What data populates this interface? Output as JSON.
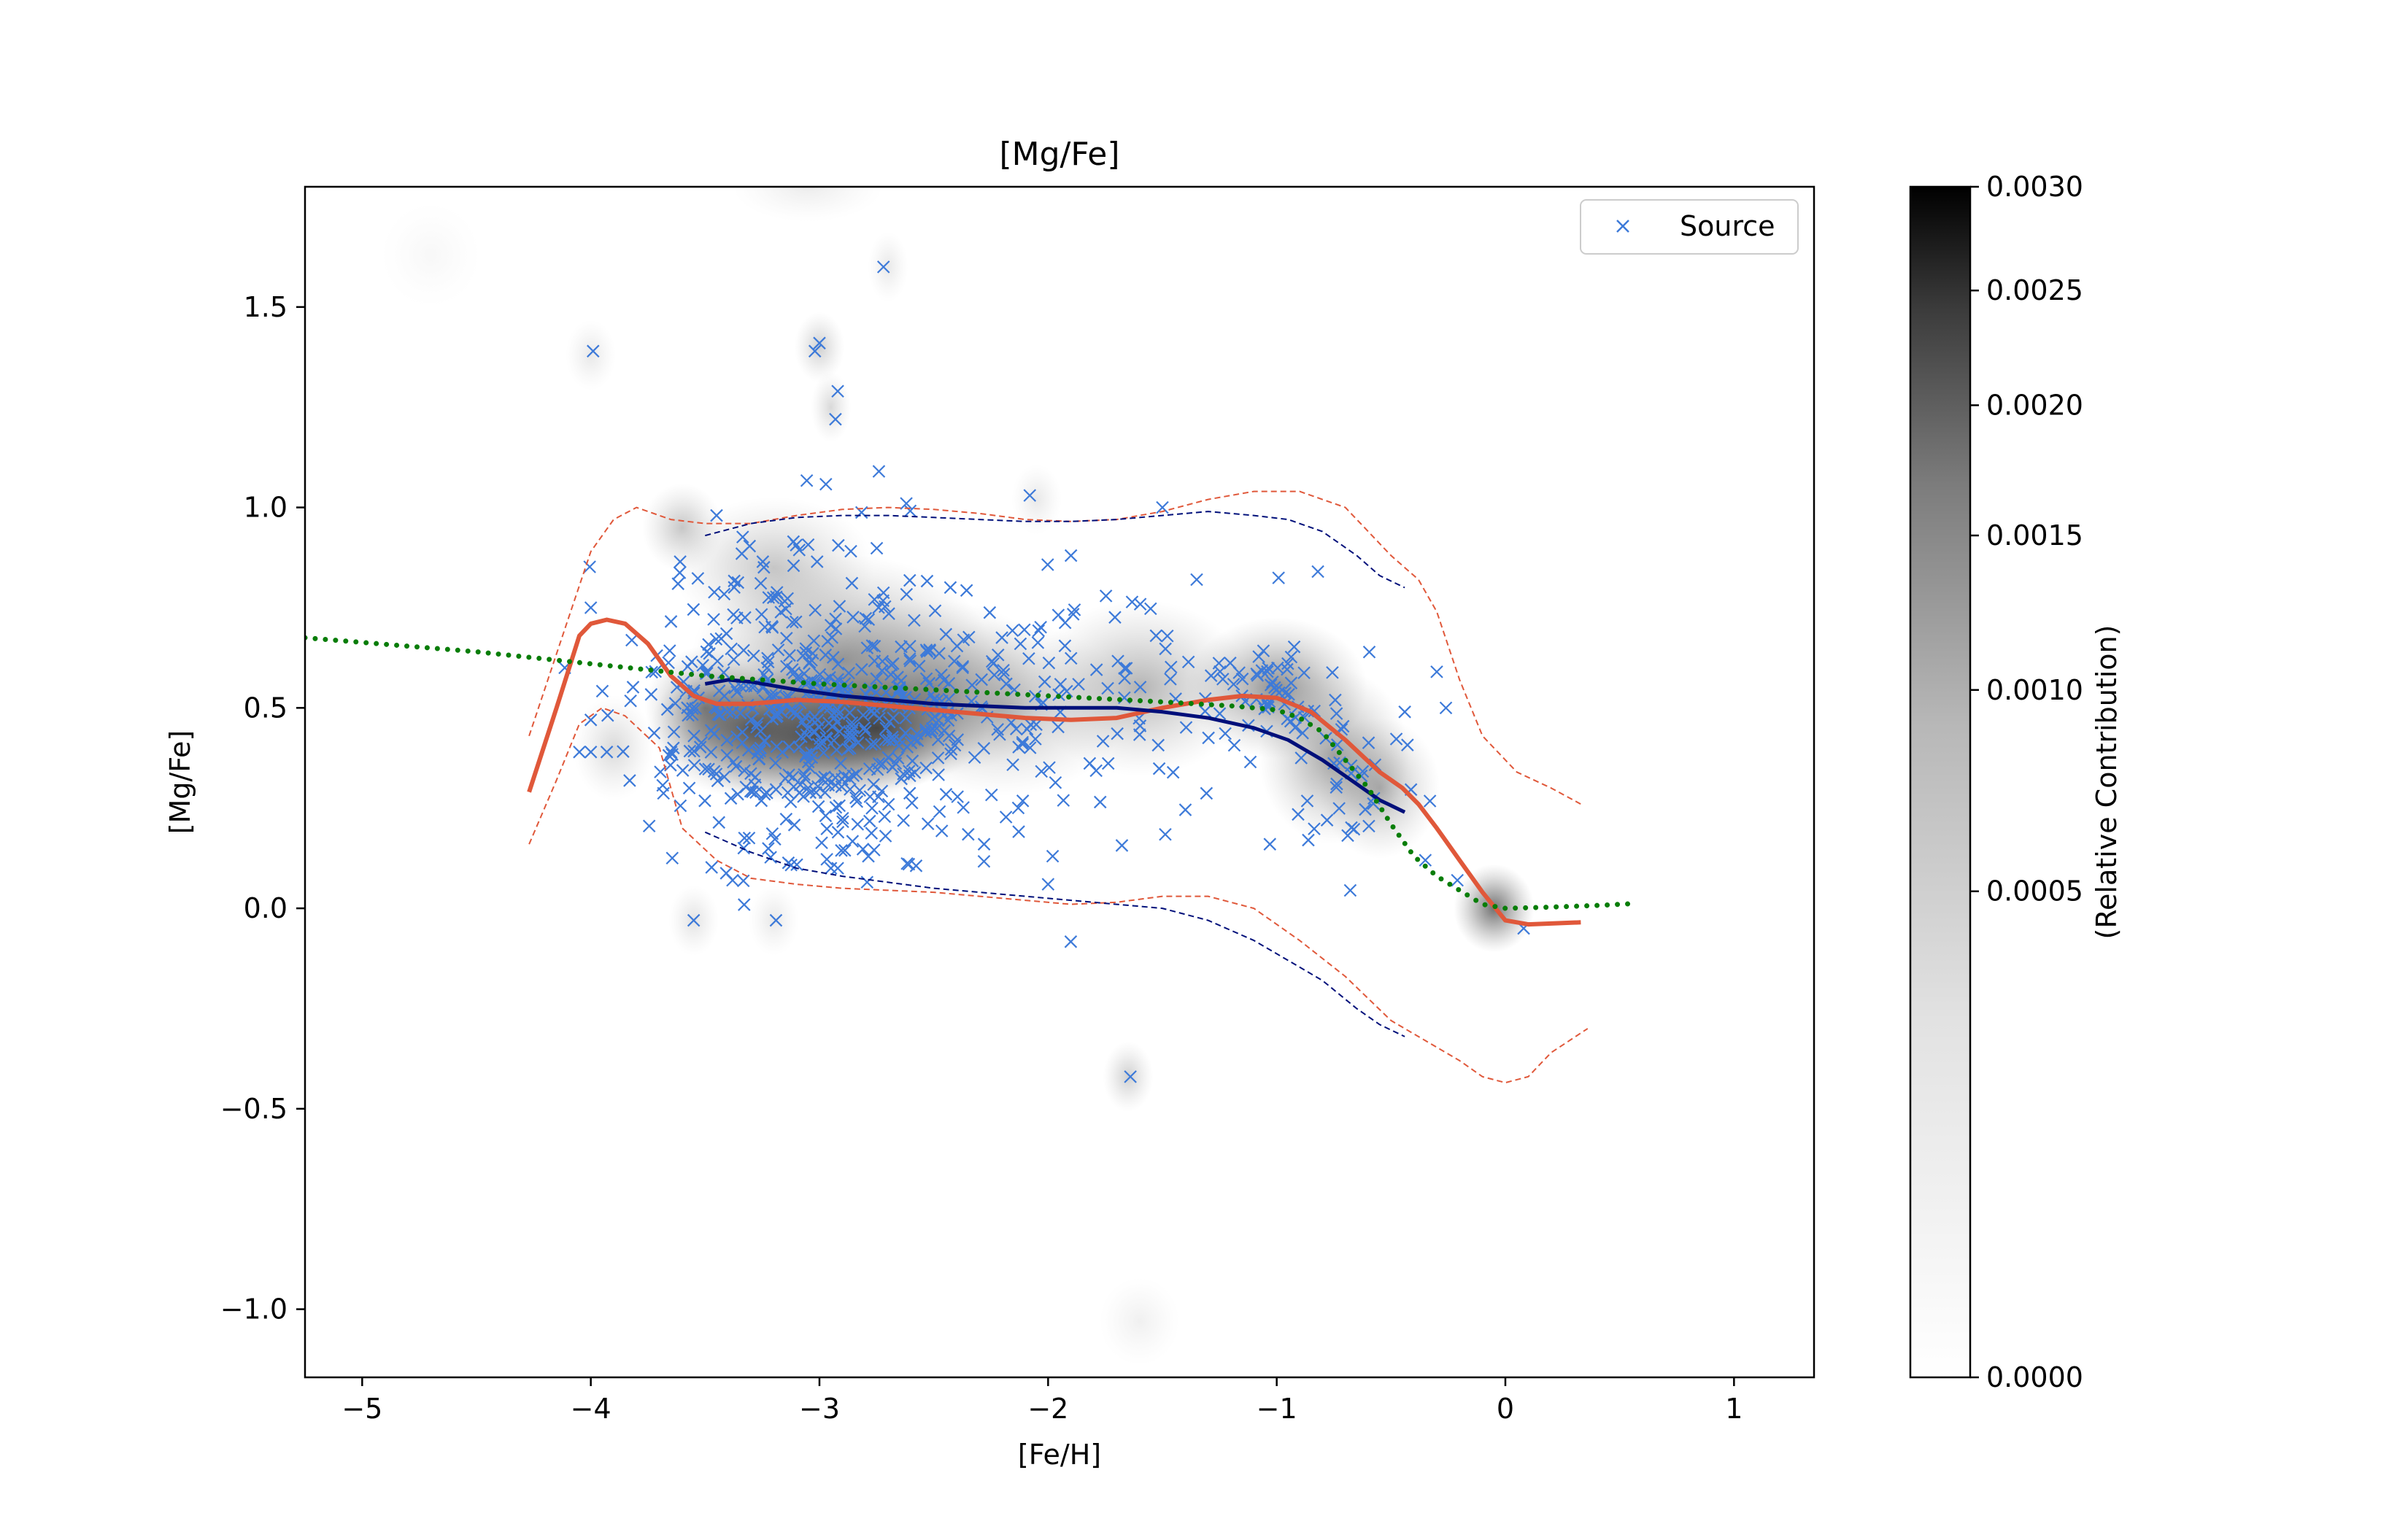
{
  "chart_data": {
    "type": "scatter",
    "title": "[Mg/Fe]",
    "xlabel": "[Fe/H]",
    "ylabel": "[Mg/Fe]",
    "xlim": [
      -5.25,
      1.35
    ],
    "ylim": [
      -1.17,
      1.8
    ],
    "xticks": [
      {
        "value": -5,
        "label": "−5"
      },
      {
        "value": -4,
        "label": "−4"
      },
      {
        "value": -3,
        "label": "−3"
      },
      {
        "value": -2,
        "label": "−2"
      },
      {
        "value": -1,
        "label": "−1"
      },
      {
        "value": 0,
        "label": "0"
      },
      {
        "value": 1,
        "label": "1"
      }
    ],
    "yticks": [
      {
        "value": -1.0,
        "label": "−1.0"
      },
      {
        "value": -0.5,
        "label": "−0.5"
      },
      {
        "value": 0.0,
        "label": "0.0"
      },
      {
        "value": 0.5,
        "label": "0.5"
      },
      {
        "value": 1.0,
        "label": "1.0"
      },
      {
        "value": 1.5,
        "label": "1.5"
      }
    ],
    "grid": false,
    "legend": {
      "placement": "top-right",
      "entries": [
        {
          "label": "Source",
          "marker": "x",
          "color": "#3d7ad9"
        }
      ]
    },
    "colorbar": {
      "label": "(Relative Contribution)",
      "range": [
        0.0,
        0.003
      ],
      "scale": "power",
      "colormap": "white-to-black",
      "ticks": [
        {
          "value": 0.003,
          "label": "0.0030"
        },
        {
          "value": 0.0025,
          "label": "0.0025"
        },
        {
          "value": 0.002,
          "label": "0.0020"
        },
        {
          "value": 0.0015,
          "label": "0.0015"
        },
        {
          "value": 0.001,
          "label": "0.0010"
        },
        {
          "value": 0.0005,
          "label": "0.0005"
        },
        {
          "value": 0.0,
          "label": "0.0000"
        }
      ]
    },
    "density_blobs": [
      {
        "x": -3.0,
        "y": 0.43,
        "sx": 0.28,
        "sy": 0.08,
        "w": 1.0
      },
      {
        "x": -2.75,
        "y": 0.45,
        "sx": 0.22,
        "sy": 0.07,
        "w": 0.9
      },
      {
        "x": -3.3,
        "y": 0.45,
        "sx": 0.2,
        "sy": 0.08,
        "w": 0.75
      },
      {
        "x": -3.5,
        "y": 0.5,
        "sx": 0.12,
        "sy": 0.07,
        "w": 0.55
      },
      {
        "x": -2.9,
        "y": 0.62,
        "sx": 0.3,
        "sy": 0.12,
        "w": 0.55
      },
      {
        "x": -2.5,
        "y": 0.55,
        "sx": 0.25,
        "sy": 0.1,
        "w": 0.45
      },
      {
        "x": -2.2,
        "y": 0.5,
        "sx": 0.25,
        "sy": 0.1,
        "w": 0.35
      },
      {
        "x": -1.6,
        "y": 0.55,
        "sx": 0.22,
        "sy": 0.1,
        "w": 0.4
      },
      {
        "x": -1.0,
        "y": 0.55,
        "sx": 0.18,
        "sy": 0.08,
        "w": 0.6
      },
      {
        "x": -0.75,
        "y": 0.38,
        "sx": 0.15,
        "sy": 0.1,
        "w": 0.5
      },
      {
        "x": -0.55,
        "y": 0.3,
        "sx": 0.12,
        "sy": 0.08,
        "w": 0.4
      },
      {
        "x": -0.05,
        "y": 0.0,
        "sx": 0.08,
        "sy": 0.05,
        "w": 0.75
      },
      {
        "x": -3.2,
        "y": 0.85,
        "sx": 0.2,
        "sy": 0.08,
        "w": 0.3
      },
      {
        "x": -3.6,
        "y": 0.95,
        "sx": 0.08,
        "sy": 0.05,
        "w": 0.3
      },
      {
        "x": -3.0,
        "y": 1.4,
        "sx": 0.05,
        "sy": 0.04,
        "w": 0.25
      },
      {
        "x": -2.95,
        "y": 1.25,
        "sx": 0.04,
        "sy": 0.04,
        "w": 0.2
      },
      {
        "x": -1.65,
        "y": -0.42,
        "sx": 0.05,
        "sy": 0.04,
        "w": 0.25
      },
      {
        "x": -1.6,
        "y": -1.03,
        "sx": 0.08,
        "sy": 0.05,
        "w": 0.08
      },
      {
        "x": -4.0,
        "y": 1.38,
        "sx": 0.05,
        "sy": 0.04,
        "w": 0.12
      },
      {
        "x": -2.7,
        "y": 1.6,
        "sx": 0.04,
        "sy": 0.04,
        "w": 0.12
      },
      {
        "x": -3.9,
        "y": 0.4,
        "sx": 0.08,
        "sy": 0.06,
        "w": 0.2
      },
      {
        "x": -3.55,
        "y": -0.03,
        "sx": 0.05,
        "sy": 0.04,
        "w": 0.15
      },
      {
        "x": -3.2,
        "y": -0.03,
        "sx": 0.05,
        "sy": 0.04,
        "w": 0.12
      },
      {
        "x": -2.05,
        "y": 1.02,
        "sx": 0.05,
        "sy": 0.04,
        "w": 0.12
      },
      {
        "x": -3.05,
        "y": 1.8,
        "sx": 0.15,
        "sy": 0.04,
        "w": 0.1
      },
      {
        "x": -4.7,
        "y": 1.63,
        "sx": 0.1,
        "sy": 0.06,
        "w": 0.04
      }
    ],
    "scatter_clusters": [
      {
        "cx": -3.0,
        "cy": 0.45,
        "sx": 0.32,
        "sy": 0.13,
        "n": 320
      },
      {
        "cx": -2.45,
        "cy": 0.5,
        "sx": 0.35,
        "sy": 0.15,
        "n": 110
      },
      {
        "cx": -3.15,
        "cy": 0.7,
        "sx": 0.3,
        "sy": 0.15,
        "n": 85
      },
      {
        "cx": -1.7,
        "cy": 0.52,
        "sx": 0.35,
        "sy": 0.15,
        "n": 70
      },
      {
        "cx": -1.0,
        "cy": 0.52,
        "sx": 0.15,
        "sy": 0.08,
        "n": 50
      },
      {
        "cx": -0.65,
        "cy": 0.33,
        "sx": 0.15,
        "sy": 0.1,
        "n": 30
      },
      {
        "cx": -3.6,
        "cy": 0.5,
        "sx": 0.12,
        "sy": 0.18,
        "n": 35
      },
      {
        "cx": -2.9,
        "cy": 0.22,
        "sx": 0.3,
        "sy": 0.08,
        "n": 40
      }
    ],
    "scatter_outliers": [
      {
        "x": -2.72,
        "y": 1.6
      },
      {
        "x": -3.0,
        "y": 1.41
      },
      {
        "x": -3.02,
        "y": 1.39
      },
      {
        "x": -2.92,
        "y": 1.29
      },
      {
        "x": -2.93,
        "y": 1.22
      },
      {
        "x": -3.99,
        "y": 1.39
      },
      {
        "x": -2.74,
        "y": 1.09
      },
      {
        "x": -2.08,
        "y": 1.03
      },
      {
        "x": -1.5,
        "y": 1.0
      },
      {
        "x": -1.64,
        "y": -0.42
      },
      {
        "x": 0.08,
        "y": -0.05
      },
      {
        "x": -3.55,
        "y": -0.03
      },
      {
        "x": -3.19,
        "y": -0.03
      },
      {
        "x": -2.0,
        "y": 0.06
      },
      {
        "x": -0.3,
        "y": 0.59
      },
      {
        "x": -0.26,
        "y": 0.5
      },
      {
        "x": -0.21,
        "y": 0.07
      },
      {
        "x": -0.35,
        "y": 0.12
      },
      {
        "x": -4.0,
        "y": 0.75
      },
      {
        "x": -4.0,
        "y": 0.39
      },
      {
        "x": -3.93,
        "y": 0.39
      },
      {
        "x": -4.05,
        "y": 0.39
      },
      {
        "x": -4.0,
        "y": 0.47
      },
      {
        "x": -3.38,
        "y": 0.07
      },
      {
        "x": -2.28,
        "y": 0.16
      },
      {
        "x": -1.98,
        "y": 0.13
      },
      {
        "x": -1.03,
        "y": 0.16
      },
      {
        "x": -0.78,
        "y": 0.22
      },
      {
        "x": -0.44,
        "y": 0.49
      },
      {
        "x": -0.82,
        "y": 0.84
      },
      {
        "x": -1.35,
        "y": 0.82
      },
      {
        "x": -1.9,
        "y": 0.88
      },
      {
        "x": -2.62,
        "y": 1.01
      },
      {
        "x": -3.45,
        "y": 0.98
      },
      {
        "x": -2.92,
        "y": 0.1
      },
      {
        "x": -2.95,
        "y": 0.1
      }
    ],
    "lines": [
      {
        "role": "orange-solid",
        "color": "#e0583a",
        "dash": "solid",
        "width": 6,
        "points": [
          [
            -4.27,
            0.29
          ],
          [
            -4.15,
            0.5
          ],
          [
            -4.05,
            0.68
          ],
          [
            -4.0,
            0.71
          ],
          [
            -3.93,
            0.72
          ],
          [
            -3.85,
            0.71
          ],
          [
            -3.75,
            0.66
          ],
          [
            -3.65,
            0.58
          ],
          [
            -3.55,
            0.53
          ],
          [
            -3.45,
            0.51
          ],
          [
            -3.3,
            0.51
          ],
          [
            -3.1,
            0.52
          ],
          [
            -2.9,
            0.515
          ],
          [
            -2.7,
            0.505
          ],
          [
            -2.5,
            0.495
          ],
          [
            -2.3,
            0.485
          ],
          [
            -2.1,
            0.475
          ],
          [
            -1.9,
            0.47
          ],
          [
            -1.7,
            0.475
          ],
          [
            -1.5,
            0.5
          ],
          [
            -1.3,
            0.52
          ],
          [
            -1.15,
            0.53
          ],
          [
            -1.0,
            0.525
          ],
          [
            -0.85,
            0.49
          ],
          [
            -0.7,
            0.42
          ],
          [
            -0.55,
            0.34
          ],
          [
            -0.45,
            0.3
          ],
          [
            -0.38,
            0.26
          ],
          [
            -0.3,
            0.2
          ],
          [
            -0.2,
            0.12
          ],
          [
            -0.1,
            0.04
          ],
          [
            0.0,
            -0.03
          ],
          [
            0.1,
            -0.04
          ],
          [
            0.33,
            -0.035
          ]
        ]
      },
      {
        "role": "orange-dashed-upper",
        "color": "#e0583a",
        "dash": "dashed",
        "width": 2,
        "points": [
          [
            -4.27,
            0.43
          ],
          [
            -4.1,
            0.72
          ],
          [
            -4.0,
            0.89
          ],
          [
            -3.9,
            0.97
          ],
          [
            -3.8,
            1.0
          ],
          [
            -3.65,
            0.97
          ],
          [
            -3.5,
            0.96
          ],
          [
            -3.3,
            0.96
          ],
          [
            -3.1,
            0.98
          ],
          [
            -2.9,
            0.995
          ],
          [
            -2.7,
            1.0
          ],
          [
            -2.5,
            0.995
          ],
          [
            -2.3,
            0.985
          ],
          [
            -2.1,
            0.97
          ],
          [
            -1.9,
            0.965
          ],
          [
            -1.7,
            0.97
          ],
          [
            -1.5,
            0.99
          ],
          [
            -1.3,
            1.02
          ],
          [
            -1.1,
            1.04
          ],
          [
            -0.9,
            1.04
          ],
          [
            -0.7,
            1.0
          ],
          [
            -0.5,
            0.88
          ],
          [
            -0.38,
            0.82
          ],
          [
            -0.3,
            0.74
          ],
          [
            -0.2,
            0.57
          ],
          [
            -0.1,
            0.43
          ],
          [
            0.05,
            0.34
          ],
          [
            0.2,
            0.3
          ],
          [
            0.33,
            0.26
          ]
        ]
      },
      {
        "role": "orange-dashed-lower",
        "color": "#e0583a",
        "dash": "dashed",
        "width": 2,
        "points": [
          [
            -4.27,
            0.16
          ],
          [
            -4.15,
            0.32
          ],
          [
            -4.05,
            0.46
          ],
          [
            -3.95,
            0.5
          ],
          [
            -3.85,
            0.48
          ],
          [
            -3.7,
            0.4
          ],
          [
            -3.6,
            0.2
          ],
          [
            -3.45,
            0.12
          ],
          [
            -3.3,
            0.075
          ],
          [
            -3.1,
            0.06
          ],
          [
            -2.9,
            0.05
          ],
          [
            -2.7,
            0.045
          ],
          [
            -2.5,
            0.04
          ],
          [
            -2.3,
            0.03
          ],
          [
            -2.1,
            0.02
          ],
          [
            -1.9,
            0.01
          ],
          [
            -1.7,
            0.015
          ],
          [
            -1.5,
            0.03
          ],
          [
            -1.3,
            0.03
          ],
          [
            -1.1,
            0.0
          ],
          [
            -0.9,
            -0.08
          ],
          [
            -0.7,
            -0.17
          ],
          [
            -0.5,
            -0.28
          ],
          [
            -0.35,
            -0.33
          ],
          [
            -0.2,
            -0.38
          ],
          [
            -0.1,
            -0.42
          ],
          [
            0.0,
            -0.435
          ],
          [
            0.1,
            -0.42
          ],
          [
            0.2,
            -0.36
          ],
          [
            0.36,
            -0.3
          ]
        ]
      },
      {
        "role": "navy-solid",
        "color": "#000f7a",
        "dash": "solid",
        "width": 5,
        "points": [
          [
            -3.5,
            0.56
          ],
          [
            -3.4,
            0.57
          ],
          [
            -3.3,
            0.565
          ],
          [
            -3.1,
            0.545
          ],
          [
            -2.9,
            0.53
          ],
          [
            -2.7,
            0.52
          ],
          [
            -2.5,
            0.51
          ],
          [
            -2.3,
            0.505
          ],
          [
            -2.1,
            0.5
          ],
          [
            -1.9,
            0.5
          ],
          [
            -1.7,
            0.5
          ],
          [
            -1.5,
            0.49
          ],
          [
            -1.3,
            0.475
          ],
          [
            -1.1,
            0.45
          ],
          [
            -0.95,
            0.42
          ],
          [
            -0.8,
            0.37
          ],
          [
            -0.65,
            0.31
          ],
          [
            -0.55,
            0.27
          ],
          [
            -0.44,
            0.24
          ]
        ]
      },
      {
        "role": "navy-dashed-upper",
        "color": "#000f7a",
        "dash": "dashed",
        "width": 2,
        "points": [
          [
            -3.5,
            0.93
          ],
          [
            -3.3,
            0.96
          ],
          [
            -3.1,
            0.975
          ],
          [
            -2.9,
            0.98
          ],
          [
            -2.7,
            0.98
          ],
          [
            -2.5,
            0.975
          ],
          [
            -2.3,
            0.97
          ],
          [
            -2.1,
            0.965
          ],
          [
            -1.9,
            0.965
          ],
          [
            -1.7,
            0.97
          ],
          [
            -1.5,
            0.98
          ],
          [
            -1.3,
            0.99
          ],
          [
            -1.1,
            0.98
          ],
          [
            -0.95,
            0.97
          ],
          [
            -0.8,
            0.94
          ],
          [
            -0.65,
            0.88
          ],
          [
            -0.55,
            0.83
          ],
          [
            -0.44,
            0.8
          ]
        ]
      },
      {
        "role": "navy-dashed-lower",
        "color": "#000f7a",
        "dash": "dashed",
        "width": 2,
        "points": [
          [
            -3.5,
            0.19
          ],
          [
            -3.3,
            0.14
          ],
          [
            -3.1,
            0.1
          ],
          [
            -2.9,
            0.08
          ],
          [
            -2.7,
            0.065
          ],
          [
            -2.5,
            0.05
          ],
          [
            -2.3,
            0.04
          ],
          [
            -2.1,
            0.03
          ],
          [
            -1.9,
            0.02
          ],
          [
            -1.7,
            0.01
          ],
          [
            -1.5,
            0.0
          ],
          [
            -1.3,
            -0.03
          ],
          [
            -1.1,
            -0.08
          ],
          [
            -0.95,
            -0.13
          ],
          [
            -0.8,
            -0.18
          ],
          [
            -0.65,
            -0.25
          ],
          [
            -0.55,
            -0.29
          ],
          [
            -0.44,
            -0.32
          ]
        ]
      },
      {
        "role": "green-dotted",
        "color": "#087d08",
        "dash": "dotted",
        "width": 7,
        "points": [
          [
            -5.25,
            0.675
          ],
          [
            -4.5,
            0.64
          ],
          [
            -4.0,
            0.61
          ],
          [
            -3.5,
            0.58
          ],
          [
            -3.0,
            0.56
          ],
          [
            -2.5,
            0.545
          ],
          [
            -2.0,
            0.53
          ],
          [
            -1.5,
            0.515
          ],
          [
            -1.2,
            0.505
          ],
          [
            -1.0,
            0.495
          ],
          [
            -0.9,
            0.475
          ],
          [
            -0.8,
            0.44
          ],
          [
            -0.7,
            0.37
          ],
          [
            -0.6,
            0.3
          ],
          [
            -0.5,
            0.21
          ],
          [
            -0.4,
            0.13
          ],
          [
            -0.3,
            0.08
          ],
          [
            -0.2,
            0.045
          ],
          [
            -0.1,
            0.01
          ],
          [
            0.0,
            0.0
          ],
          [
            0.2,
            0.003
          ],
          [
            0.4,
            0.007
          ],
          [
            0.57,
            0.012
          ]
        ]
      }
    ]
  }
}
